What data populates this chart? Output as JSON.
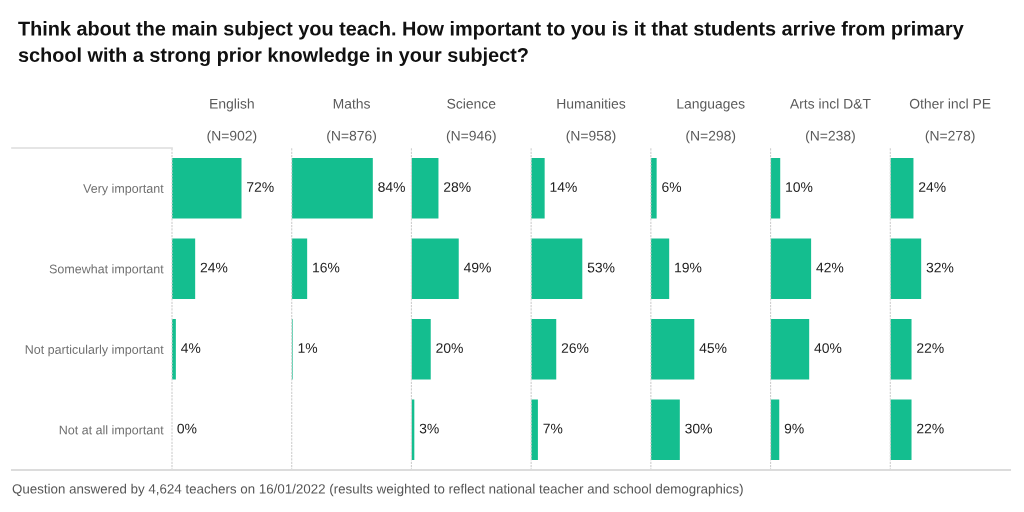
{
  "chart_data": [
    {
      "type": "bar",
      "orientation": "horizontal",
      "title": "English",
      "subtitle": "(N=902)",
      "categories": [
        "Very important",
        "Somewhat important",
        "Not particularly important",
        "Not at all important"
      ],
      "values": [
        72,
        24,
        4,
        0
      ],
      "value_labels": [
        "72%",
        "24%",
        "4%",
        "0%"
      ],
      "color": "#14be8f",
      "xlim": [
        0,
        124
      ],
      "tick_labels": "y",
      "annotations": [
        "Think about the main subject you teach. How important to you is it that students arrive from primary school with a strong prior knowledge in your subject?",
        "Question answered by 4,624 teachers on 16/01/2022 (results weighted to reflect national teacher and school demographics)"
      ]
    },
    {
      "type": "bar",
      "orientation": "horizontal",
      "title": "Maths",
      "subtitle": "(N=876)",
      "values": [
        84,
        16,
        1,
        null
      ],
      "value_labels": [
        "84%",
        "16%",
        "1%",
        null
      ],
      "color": "#14be8f",
      "xlim": [
        0,
        124
      ],
      "tick_labels": false
    },
    {
      "type": "bar",
      "orientation": "horizontal",
      "title": "Science",
      "subtitle": "(N=946)",
      "values": [
        28,
        49,
        20,
        3
      ],
      "value_labels": [
        "28%",
        "49%",
        "20%",
        "3%"
      ],
      "color": "#14be8f",
      "xlim": [
        0,
        124
      ],
      "tick_labels": false
    },
    {
      "type": "bar",
      "orientation": "horizontal",
      "title": "Humanities",
      "subtitle": "(N=958)",
      "values": [
        14,
        53,
        26,
        7
      ],
      "value_labels": [
        "14%",
        "53%",
        "26%",
        "7%"
      ],
      "color": "#14be8f",
      "xlim": [
        0,
        124
      ],
      "tick_labels": false
    },
    {
      "type": "bar",
      "orientation": "horizontal",
      "title": "Languages",
      "subtitle": "(N=298)",
      "values": [
        6,
        19,
        45,
        30
      ],
      "value_labels": [
        "6%",
        "19%",
        "45%",
        "30%"
      ],
      "color": "#14be8f",
      "xlim": [
        0,
        124
      ],
      "tick_labels": false
    },
    {
      "type": "bar",
      "orientation": "horizontal",
      "title": "Arts incl D&T",
      "subtitle": "(N=238)",
      "values": [
        10,
        42,
        40,
        9
      ],
      "value_labels": [
        "10%",
        "42%",
        "40%",
        "9%"
      ],
      "color": "#14be8f",
      "xlim": [
        0,
        124
      ],
      "tick_labels": false
    },
    {
      "type": "bar",
      "orientation": "horizontal",
      "title": "Other incl PE",
      "subtitle": "(N=278)",
      "values": [
        24,
        32,
        22,
        22
      ],
      "value_labels": [
        "24%",
        "32%",
        "22%",
        "22%"
      ],
      "color": "#14be8f",
      "xlim": [
        0,
        124
      ],
      "tick_labels": false
    }
  ]
}
